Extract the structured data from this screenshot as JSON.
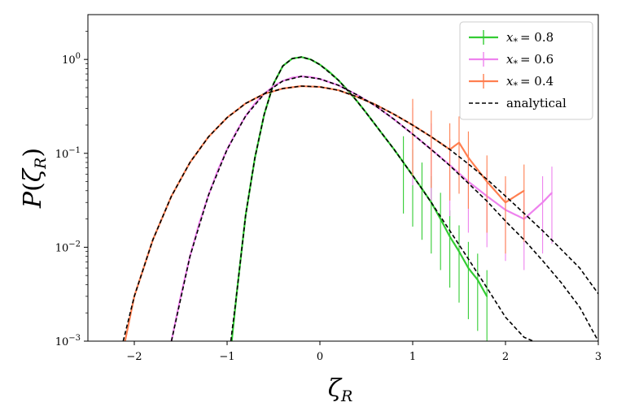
{
  "chart_data": {
    "type": "line",
    "title": "",
    "xlabel": "ζ_R",
    "ylabel": "P(ζ_R)",
    "xlim": [
      -2.5,
      3
    ],
    "ylim": [
      0.001,
      3
    ],
    "yscale": "log",
    "grid": false,
    "legend_position": "top-right",
    "x_ticks": [
      -2,
      -1,
      0,
      1,
      2,
      3
    ],
    "x_tick_labels": [
      "−2",
      "−1",
      "0",
      "1",
      "2",
      "3"
    ],
    "y_ticks": [
      0.001,
      0.01,
      0.1,
      1
    ],
    "y_tick_labels": [
      {
        "base": "10",
        "exp": "−3"
      },
      {
        "base": "10",
        "exp": "−2"
      },
      {
        "base": "10",
        "exp": "−1"
      },
      {
        "base": "10",
        "exp": "0"
      }
    ],
    "series": [
      {
        "name": "x* = 0.8",
        "label_var": "x",
        "label_sub": "*",
        "label_value": "= 0.8",
        "color": "#33cc33",
        "x": [
          -0.95,
          -0.9,
          -0.8,
          -0.7,
          -0.6,
          -0.5,
          -0.4,
          -0.3,
          -0.2,
          -0.1,
          0.0,
          0.1,
          0.2,
          0.3,
          0.4,
          0.5,
          0.6,
          0.7,
          0.8,
          0.9,
          1.0,
          1.1,
          1.2,
          1.3,
          1.4,
          1.5,
          1.6,
          1.7,
          1.8
        ],
        "y": [
          0.001,
          0.003,
          0.022,
          0.09,
          0.26,
          0.55,
          0.85,
          1.02,
          1.06,
          1.0,
          0.88,
          0.74,
          0.6,
          0.47,
          0.36,
          0.27,
          0.2,
          0.148,
          0.11,
          0.08,
          0.058,
          0.042,
          0.03,
          0.02,
          0.013,
          0.009,
          0.006,
          0.0045,
          0.003
        ]
      },
      {
        "name": "x* = 0.6",
        "label_var": "x",
        "label_sub": "*",
        "label_value": "= 0.6",
        "color": "#ee82ee",
        "x": [
          -1.6,
          -1.5,
          -1.4,
          -1.3,
          -1.2,
          -1.1,
          -1.0,
          -0.9,
          -0.8,
          -0.7,
          -0.6,
          -0.5,
          -0.4,
          -0.3,
          -0.2,
          -0.1,
          0.0,
          0.2,
          0.4,
          0.6,
          0.8,
          1.0,
          1.2,
          1.4,
          1.6,
          1.8,
          2.0,
          2.2,
          2.4,
          2.5
        ],
        "y": [
          0.001,
          0.003,
          0.008,
          0.018,
          0.036,
          0.066,
          0.11,
          0.17,
          0.25,
          0.34,
          0.43,
          0.52,
          0.59,
          0.64,
          0.66,
          0.65,
          0.62,
          0.53,
          0.42,
          0.32,
          0.23,
          0.16,
          0.11,
          0.075,
          0.05,
          0.035,
          0.025,
          0.02,
          0.03,
          0.038
        ]
      },
      {
        "name": "x* = 0.4",
        "label_var": "x",
        "label_sub": "*",
        "label_value": "= 0.4",
        "color": "#ff7f50",
        "x": [
          -2.1,
          -2.0,
          -1.8,
          -1.6,
          -1.4,
          -1.2,
          -1.0,
          -0.8,
          -0.6,
          -0.4,
          -0.2,
          0.0,
          0.2,
          0.4,
          0.6,
          0.8,
          1.0,
          1.2,
          1.4,
          1.5,
          1.6,
          1.8,
          2.0,
          2.2
        ],
        "y": [
          0.001,
          0.003,
          0.012,
          0.035,
          0.08,
          0.15,
          0.24,
          0.34,
          0.43,
          0.49,
          0.52,
          0.51,
          0.47,
          0.4,
          0.33,
          0.26,
          0.2,
          0.15,
          0.11,
          0.13,
          0.09,
          0.05,
          0.03,
          0.04
        ]
      },
      {
        "name": "analytical",
        "color": "#000000",
        "dashed": true,
        "curves": [
          {
            "x": [
              -0.96,
              -0.9,
              -0.8,
              -0.7,
              -0.6,
              -0.5,
              -0.4,
              -0.3,
              -0.2,
              -0.1,
              0.0,
              0.2,
              0.4,
              0.6,
              0.8,
              1.0,
              1.2,
              1.4,
              1.6,
              1.8,
              2.0,
              2.2,
              2.3
            ],
            "y": [
              0.001,
              0.003,
              0.022,
              0.09,
              0.26,
              0.55,
              0.85,
              1.02,
              1.06,
              1.0,
              0.88,
              0.6,
              0.36,
              0.2,
              0.11,
              0.058,
              0.03,
              0.015,
              0.0075,
              0.0037,
              0.0018,
              0.0011,
              0.001
            ]
          },
          {
            "x": [
              -1.6,
              -1.4,
              -1.2,
              -1.0,
              -0.8,
              -0.6,
              -0.4,
              -0.2,
              0.0,
              0.2,
              0.4,
              0.6,
              0.8,
              1.0,
              1.2,
              1.4,
              1.6,
              1.8,
              2.0,
              2.2,
              2.4,
              2.6,
              2.8,
              3.0
            ],
            "y": [
              0.001,
              0.008,
              0.036,
              0.11,
              0.25,
              0.43,
              0.59,
              0.66,
              0.62,
              0.53,
              0.42,
              0.32,
              0.23,
              0.16,
              0.11,
              0.074,
              0.048,
              0.031,
              0.019,
              0.012,
              0.0072,
              0.0042,
              0.0023,
              0.001
            ]
          },
          {
            "x": [
              -2.12,
              -2.0,
              -1.8,
              -1.6,
              -1.4,
              -1.2,
              -1.0,
              -0.8,
              -0.6,
              -0.4,
              -0.2,
              0.0,
              0.2,
              0.4,
              0.6,
              0.8,
              1.0,
              1.2,
              1.4,
              1.6,
              1.8,
              2.0,
              2.2,
              2.4,
              2.6,
              2.8,
              3.0
            ],
            "y": [
              0.001,
              0.003,
              0.012,
              0.035,
              0.08,
              0.15,
              0.24,
              0.34,
              0.43,
              0.49,
              0.52,
              0.51,
              0.47,
              0.4,
              0.33,
              0.26,
              0.2,
              0.15,
              0.11,
              0.077,
              0.053,
              0.035,
              0.023,
              0.015,
              0.0095,
              0.006,
              0.0032
            ]
          }
        ]
      }
    ]
  }
}
